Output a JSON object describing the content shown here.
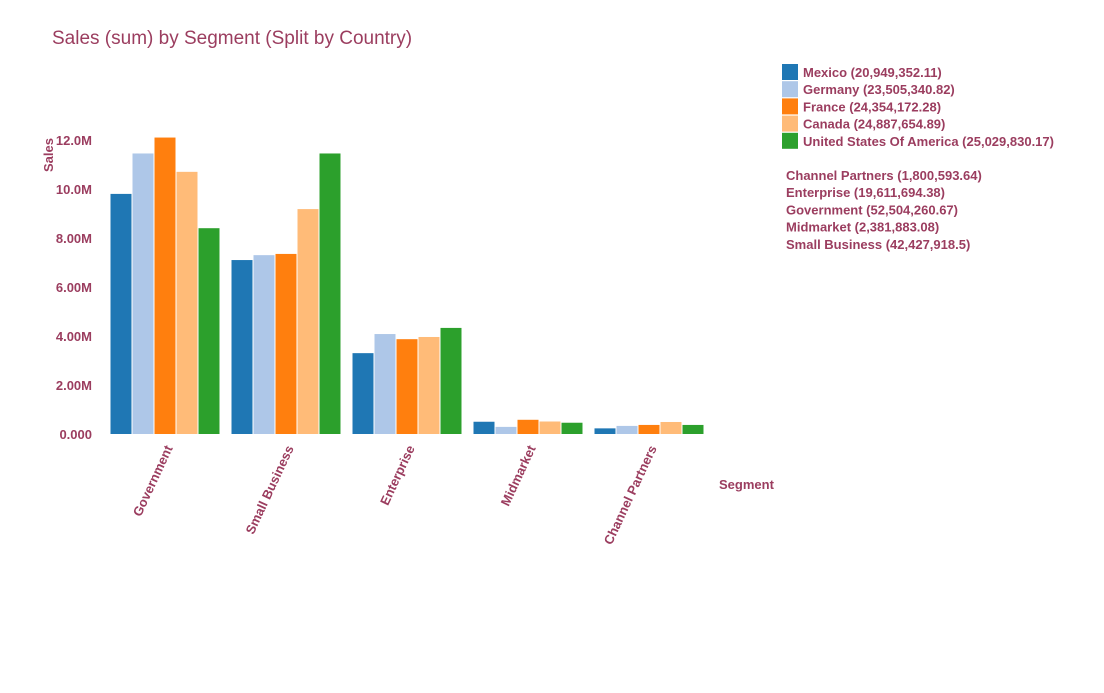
{
  "chart_data": {
    "type": "bar",
    "title": "Sales (sum) by Segment (Split by Country)",
    "xlabel": "Segment",
    "ylabel": "Sales",
    "ylim": [
      0,
      12000000
    ],
    "yticks": [
      0,
      2000000,
      4000000,
      6000000,
      8000000,
      10000000,
      12000000
    ],
    "ytick_labels": [
      "0.000",
      "2.00M",
      "4.00M",
      "6.00M",
      "8.00M",
      "10.0M",
      "12.0M"
    ],
    "categories": [
      "Government",
      "Small Business",
      "Enterprise",
      "Midmarket",
      "Channel Partners"
    ],
    "series": [
      {
        "name": "Mexico",
        "color": "#1f77b4",
        "values": [
          9800000,
          7100000,
          3300000,
          500000,
          230000
        ]
      },
      {
        "name": "Germany",
        "color": "#aec7e8",
        "values": [
          11450000,
          7300000,
          4080000,
          290000,
          330000
        ]
      },
      {
        "name": "France",
        "color": "#ff7f0e",
        "values": [
          12100000,
          7350000,
          3870000,
          580000,
          370000
        ]
      },
      {
        "name": "Canada",
        "color": "#ffbb78",
        "values": [
          10700000,
          9180000,
          3960000,
          510000,
          490000
        ]
      },
      {
        "name": "United States Of America",
        "color": "#2ca02c",
        "values": [
          8400000,
          11450000,
          4330000,
          460000,
          370000
        ]
      }
    ],
    "grid": false,
    "legend_position": "top-right",
    "legend_series_entries": [
      "Mexico (20,949,352.11)",
      "Germany (23,505,340.82)",
      "France (24,354,172.28)",
      "Canada (24,887,654.89)",
      "United States Of America (25,029,830.17)"
    ],
    "legend_category_entries": [
      "Channel Partners (1,800,593.64)",
      "Enterprise (19,611,694.38)",
      "Government (52,504,260.67)",
      "Midmarket (2,381,883.08)",
      "Small Business (42,427,918.5)"
    ],
    "text_color": "#9b3d5f"
  }
}
